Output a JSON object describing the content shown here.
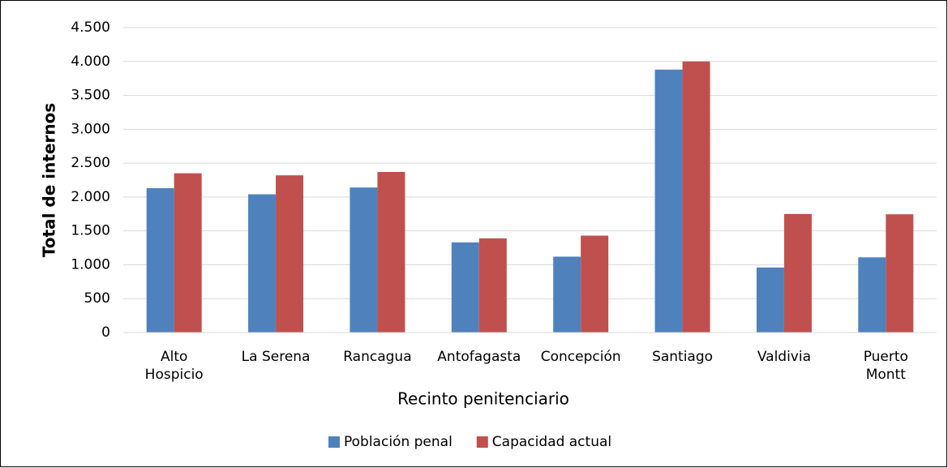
{
  "chart_data": {
    "type": "bar",
    "x_label": "Recinto penitenciario",
    "y_label": "Total de internos",
    "categories": [
      "Alto Hospicio",
      "La Serena",
      "Rancagua",
      "Antofagasta",
      "Concepción",
      "Santiago",
      "Valdivia",
      "Puerto Montt"
    ],
    "series": [
      {
        "name": "Población penal",
        "color": "#4f81bd",
        "values": [
          2130,
          2040,
          2140,
          1330,
          1120,
          3880,
          960,
          1110
        ]
      },
      {
        "name": "Capacidad actual",
        "color": "#c0504d",
        "values": [
          2350,
          2320,
          2370,
          1390,
          1430,
          4000,
          1750,
          1745
        ]
      }
    ],
    "ylim": [
      0,
      4500
    ],
    "yticks": [
      0,
      500,
      {
        "value": 1000,
        "label": "1.000"
      },
      {
        "value": 1500,
        "label": "1.500"
      },
      {
        "value": 2000,
        "label": "2.000"
      },
      {
        "value": 2500,
        "label": "2.500"
      },
      {
        "value": 3000,
        "label": "3.000"
      },
      {
        "value": 3500,
        "label": "3.500"
      },
      {
        "value": 4000,
        "label": "4.000"
      },
      {
        "value": 4500,
        "label": "4.500"
      }
    ],
    "grid": true,
    "legend": "bottom"
  }
}
